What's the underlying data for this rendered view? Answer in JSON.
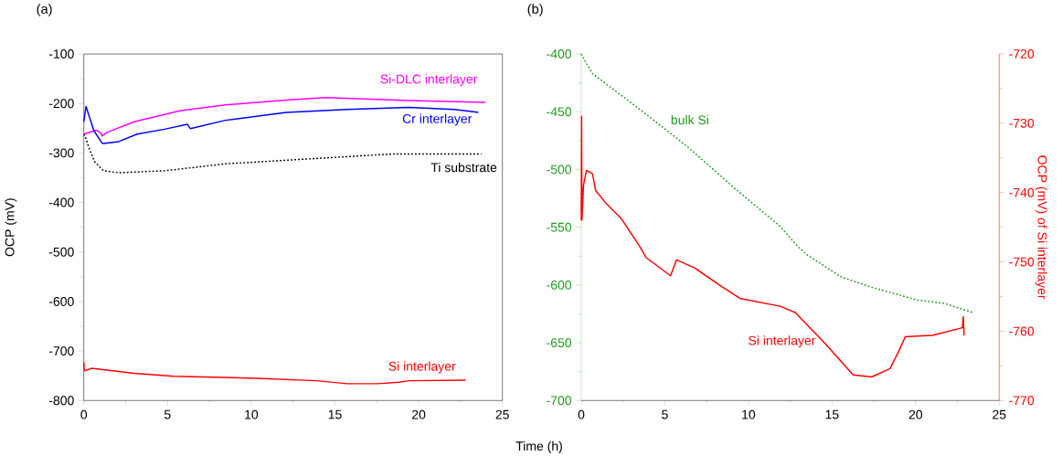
{
  "chart_data": [
    {
      "type": "line",
      "title": "(a)",
      "xlabel": "Time (h)",
      "ylabel": "OCP (mV)",
      "xlim": [
        0,
        25
      ],
      "xticks": [
        0,
        5,
        10,
        15,
        20,
        25
      ],
      "ylim": [
        -800,
        -100
      ],
      "yticks": [
        -800,
        -700,
        -600,
        -500,
        -400,
        -300,
        -200,
        -100
      ],
      "grid": false,
      "series": [
        {
          "name": "Si-DLC interlayer",
          "color": "#ff00ff",
          "line_style": "solid",
          "x": [
            0,
            0.73,
            1.0,
            1.09,
            1.36,
            3.0,
            5.73,
            8.46,
            12.1,
            14.46,
            19.4,
            24.0
          ],
          "values": [
            -262,
            -254,
            -259,
            -266,
            -259,
            -237,
            -215,
            -203,
            -193,
            -188,
            -194,
            -198
          ]
        },
        {
          "name": "Cr interlayer",
          "color": "#0000ff",
          "line_style": "solid",
          "x": [
            0,
            0.13,
            0.6,
            1.09,
            1.18,
            2.09,
            3.18,
            4.82,
            6.18,
            6.37,
            8.46,
            12.1,
            15.74,
            19.4,
            22.1,
            23.56
          ],
          "values": [
            -237,
            -206,
            -255,
            -280,
            -281,
            -277,
            -262,
            -252,
            -242,
            -251,
            -234,
            -218,
            -212,
            -208,
            -212,
            -218
          ]
        },
        {
          "name": "Ti substrate",
          "color": "#000000",
          "line_style": "dotted",
          "x": [
            0,
            0.1,
            0.27,
            0.63,
            1.18,
            2.09,
            4.82,
            8.46,
            14.46,
            18.47,
            23.74
          ],
          "values": [
            -262,
            -268,
            -286,
            -317,
            -336,
            -340,
            -336,
            -322,
            -310,
            -302,
            -302
          ]
        },
        {
          "name": "Si interlayer",
          "color": "#ff0000",
          "line_style": "solid",
          "x": [
            0,
            0.02,
            0.05,
            0.45,
            3.0,
            5.37,
            10.3,
            13.9,
            15.74,
            17.55,
            18.83,
            19.4,
            22.8
          ],
          "values": [
            -723,
            -738,
            -740,
            -735,
            -745,
            -751,
            -755,
            -760,
            -766,
            -766,
            -763,
            -760,
            -759
          ]
        }
      ]
    },
    {
      "type": "line",
      "title": "(b)",
      "y2label": "OCP (mV) of Si interlayer",
      "xlim": [
        0,
        25
      ],
      "xticks": [
        0,
        5,
        10,
        15,
        20,
        25
      ],
      "ylim": [
        -700,
        -400
      ],
      "yticks": [
        -700,
        -650,
        -600,
        -550,
        -500,
        -450,
        -400
      ],
      "y2lim": [
        -770,
        -720
      ],
      "y2ticks": [
        -770,
        -760,
        -750,
        -740,
        -730,
        -720
      ],
      "grid": false,
      "series": [
        {
          "name": "bulk Si",
          "color": "#1f9a1f",
          "line_style": "dotted",
          "x": [
            0,
            0.3,
            0.67,
            3.32,
            3.68,
            6.41,
            9.15,
            11.88,
            12.97,
            13.52,
            15.54,
            17.37,
            20.1,
            21.74,
            23.45
          ],
          "values": [
            -400,
            -408,
            -417,
            -446,
            -450,
            -481,
            -516,
            -549,
            -567,
            -574,
            -593,
            -602,
            -613,
            -616,
            -624
          ]
        },
        {
          "name": "Si interlayer",
          "color": "#ff0000",
          "line_style": "solid",
          "axis": "y2",
          "x": [
            0,
            0.02,
            0.04,
            0.13,
            0.31,
            0.67,
            0.86,
            1.5,
            2.41,
            3.5,
            3.89,
            5.34,
            5.7,
            6.8,
            8.24,
            9.53,
            11.9,
            12.8,
            14.63,
            16.26,
            17.37,
            18.47,
            19.01,
            19.38,
            21.0,
            22.8,
            22.85,
            22.9
          ],
          "values": [
            -744,
            -729,
            -744,
            -739,
            -736.8,
            -737.3,
            -739.7,
            -741.6,
            -743.8,
            -747.8,
            -749.4,
            -752.0,
            -749.7,
            -750.9,
            -753.3,
            -755.3,
            -756.4,
            -757.3,
            -761.9,
            -766.3,
            -766.6,
            -765.4,
            -762.8,
            -760.8,
            -760.6,
            -759.5,
            -757.9,
            -760.6
          ]
        }
      ]
    }
  ]
}
